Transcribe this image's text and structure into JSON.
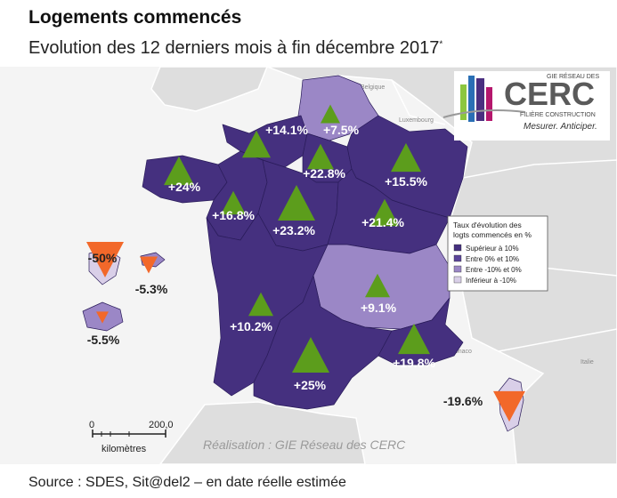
{
  "title": "Logements commencés",
  "subtitle": "Evolution des 12 derniers mois à fin décembre 2017",
  "subtitle_mark": "*",
  "source": "Source : SDES, Sit@del2 – en date réelle estimée",
  "credit": "Réalisation : GIE Réseau des CERC",
  "logo": {
    "top": "GIE RÉSEAU DES",
    "name": "CERC",
    "line": "FILIÈRE CONSTRUCTION",
    "tagline": "Mesurer. Anticiper."
  },
  "legend": {
    "title_line1": "Taux d'évolution des",
    "title_line2": "logts commencés en %",
    "items": [
      {
        "label": "Supérieur à 10%",
        "color": "#45307f"
      },
      {
        "label": "Entre 0% et 10%",
        "color": "#5b459a"
      },
      {
        "label": "Entre -10% et 0%",
        "color": "#9b87c6"
      },
      {
        "label": "Inférieur à -10%",
        "color": "#d9cfe8"
      }
    ]
  },
  "scale": {
    "start": "0",
    "end": "200,0",
    "unit": "kilomètres"
  },
  "background_labels": {
    "belgique": "Belgique",
    "luxembourg": "Luxembourg",
    "monaco": "Monaco",
    "italie": "Italie"
  },
  "regions": [
    {
      "id": "hauts-de-france",
      "value": "+7.5%",
      "direction": "up"
    },
    {
      "id": "normandie",
      "value": "+14.1%",
      "direction": "up"
    },
    {
      "id": "ile-de-france",
      "value": "+22.8%",
      "direction": "up"
    },
    {
      "id": "grand-est",
      "value": "+15.5%",
      "direction": "up"
    },
    {
      "id": "bretagne",
      "value": "+24%",
      "direction": "up"
    },
    {
      "id": "pays-de-la-loire",
      "value": "+16.8%",
      "direction": "up"
    },
    {
      "id": "centre-val-de-loire",
      "value": "+23.2%",
      "direction": "up"
    },
    {
      "id": "bourgogne-franche-comte",
      "value": "+21.4%",
      "direction": "up"
    },
    {
      "id": "auvergne-rhone-alpes",
      "value": "+9.1%",
      "direction": "up"
    },
    {
      "id": "nouvelle-aquitaine",
      "value": "+10.2%",
      "direction": "up"
    },
    {
      "id": "occitanie",
      "value": "+25%",
      "direction": "up"
    },
    {
      "id": "paca",
      "value": "+19.8%",
      "direction": "up"
    },
    {
      "id": "corse",
      "value": "-19.6%",
      "direction": "down"
    },
    {
      "id": "guyane-antilles",
      "value": "-50%",
      "direction": "down"
    },
    {
      "id": "guadeloupe",
      "value": "-5.3%",
      "direction": "down"
    },
    {
      "id": "reunion",
      "value": "-5.5%",
      "direction": "down"
    }
  ],
  "colors": {
    "strong": "#45307f",
    "medium": "#5b459a",
    "light": "#9b87c6",
    "pale": "#d9cfe8",
    "up_arrow": "#5c9d1c",
    "down_arrow": "#f2682a",
    "land": "#dcdcdc",
    "sea": "#f4f4f4"
  }
}
